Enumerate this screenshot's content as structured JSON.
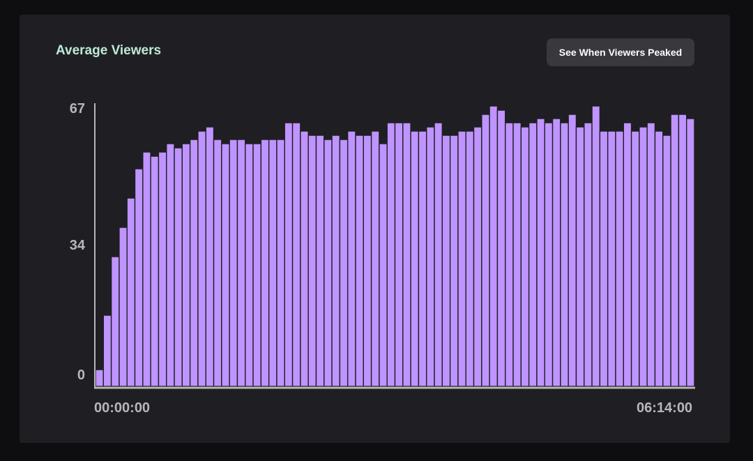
{
  "header": {
    "title": "Average Viewers",
    "peak_button_label": "See When Viewers Peaked"
  },
  "colors": {
    "bar": "#bf94ff",
    "title": "#bfe9d6",
    "card": "#1f1f23",
    "axis": "#b6b6bb"
  },
  "chart_data": {
    "type": "bar",
    "title": "Average Viewers",
    "ylim": [
      0,
      67
    ],
    "y_ticks": [
      "67",
      "34",
      "0"
    ],
    "x_tick_labels": [
      "00:00:00",
      "06:14:00"
    ],
    "x_range": [
      "00:00:00",
      "06:14:00"
    ],
    "grid": false,
    "values": [
      4,
      17,
      31,
      38,
      45,
      52,
      56,
      55,
      56,
      58,
      57,
      58,
      59,
      61,
      62,
      59,
      58,
      59,
      59,
      58,
      58,
      59,
      59,
      59,
      63,
      63,
      61,
      60,
      60,
      59,
      60,
      59,
      61,
      60,
      60,
      61,
      58,
      63,
      63,
      63,
      61,
      61,
      62,
      63,
      60,
      60,
      61,
      61,
      62,
      65,
      67,
      66,
      63,
      63,
      62,
      63,
      64,
      63,
      64,
      63,
      65,
      62,
      63,
      67,
      61,
      61,
      61,
      63,
      61,
      62,
      63,
      61,
      60,
      65,
      65,
      64
    ]
  }
}
